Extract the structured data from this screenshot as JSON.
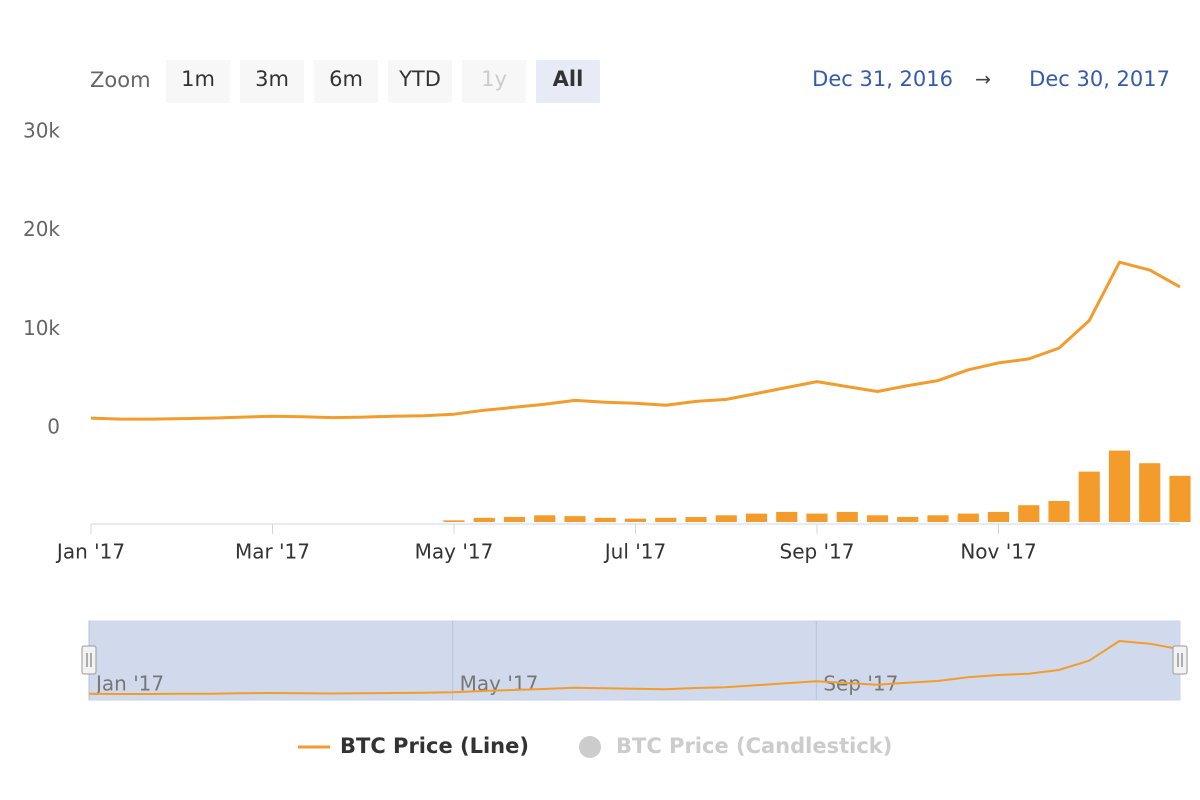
{
  "chart_data": {
    "type": "line",
    "range_selector": {
      "label": "Zoom",
      "buttons": [
        "1m",
        "3m",
        "6m",
        "YTD",
        "1y",
        "All"
      ],
      "selected": "All",
      "disabled": [
        "1y"
      ],
      "from": "Dec 31, 2016",
      "arrow": "→",
      "to": "Dec 30, 2017"
    },
    "categories": [
      "Jan '17",
      null,
      null,
      null,
      null,
      null,
      "Mar '17",
      null,
      null,
      null,
      null,
      null,
      "May '17",
      null,
      null,
      null,
      null,
      null,
      "Jul '17",
      null,
      null,
      null,
      null,
      null,
      "Sep '17",
      null,
      null,
      null,
      null,
      null,
      "Nov '17",
      null,
      null,
      null,
      null,
      null,
      null
    ],
    "series": [
      {
        "name": "BTC Price (Line)",
        "color": "#f39c2b",
        "values": [
          1000,
          900,
          900,
          950,
          1000,
          1100,
          1200,
          1150,
          1050,
          1100,
          1200,
          1250,
          1400,
          1800,
          2100,
          2400,
          2800,
          2600,
          2500,
          2300,
          2700,
          2900,
          3500,
          4100,
          4700,
          4200,
          3700,
          4300,
          4800,
          5900,
          6600,
          7000,
          8100,
          10900,
          16800,
          16000,
          14300
        ]
      }
    ],
    "hidden_series": [
      {
        "name": "BTC Price (Candlestick)",
        "color": "#cccccc"
      }
    ],
    "volume": {
      "color": "#f39c2b",
      "axis": "y2",
      "values": [
        null,
        null,
        null,
        null,
        null,
        null,
        null,
        null,
        null,
        null,
        null,
        null,
        2,
        5,
        6,
        8,
        7,
        5,
        4,
        5,
        6,
        8,
        10,
        12,
        10,
        12,
        8,
        6,
        8,
        10,
        12,
        20,
        25,
        60,
        85,
        70,
        55
      ]
    },
    "ylim": [
      0,
      30000
    ],
    "yticks": [
      {
        "value": 0,
        "label": "0"
      },
      {
        "value": 10000,
        "label": "10k"
      },
      {
        "value": 20000,
        "label": "20k"
      },
      {
        "value": 30000,
        "label": "30k"
      }
    ],
    "y2lim": [
      0,
      100
    ],
    "grid": false
  }
}
